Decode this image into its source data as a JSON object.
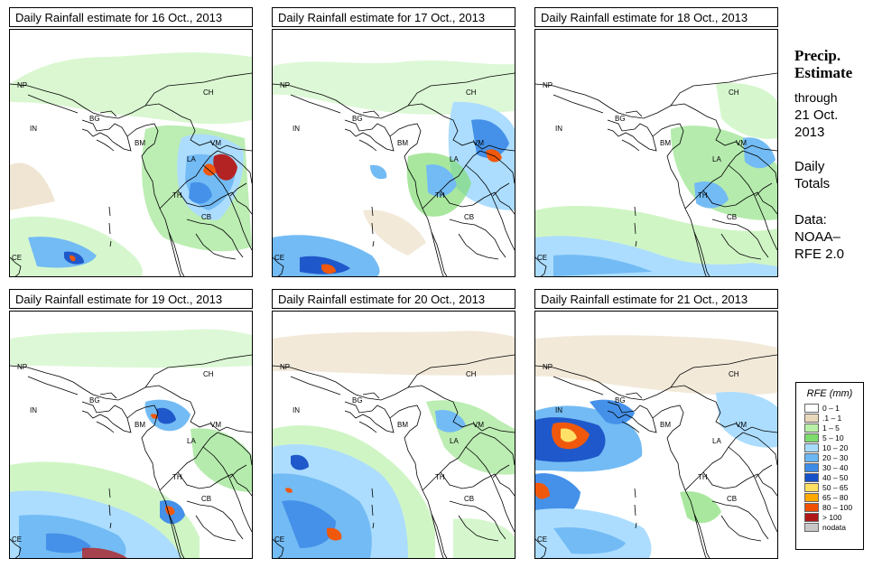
{
  "panels": [
    {
      "title": "Daily Rainfall estimate for  16 Oct., 2013",
      "key": "d16"
    },
    {
      "title": "Daily Rainfall estimate for  17 Oct., 2013",
      "key": "d17"
    },
    {
      "title": "Daily Rainfall estimate for  18 Oct., 2013",
      "key": "d18"
    },
    {
      "title": "Daily Rainfall estimate for  19 Oct., 2013",
      "key": "d19"
    },
    {
      "title": "Daily Rainfall estimate for  20 Oct., 2013",
      "key": "d20"
    },
    {
      "title": "Daily Rainfall estimate for  21 Oct., 2013",
      "key": "d21"
    }
  ],
  "country_labels": {
    "np": "NP",
    "in": "IN",
    "bg": "BG",
    "bm": "BM",
    "ch": "CH",
    "vm": "VM",
    "la": "LA",
    "th": "TH",
    "cb": "CB",
    "ce": "CE"
  },
  "side": {
    "heading1": "Precip.",
    "heading2": "Estimate",
    "through": "through",
    "date1": "21 Oct.",
    "date2": "2013",
    "daily": "Daily",
    "totals": "Totals",
    "data": "Data:",
    "source1": "NOAA–",
    "source2": "RFE 2.0"
  },
  "legend": {
    "title": "RFE (mm)",
    "items": [
      {
        "label": "0 – 1",
        "color": "#ffffff"
      },
      {
        "label": ".1 – 1",
        "color": "#e8d8bc"
      },
      {
        "label": "1 – 5",
        "color": "#b8f0a8"
      },
      {
        "label": "5 – 10",
        "color": "#7ddc6e"
      },
      {
        "label": "10 – 20",
        "color": "#a8dcff"
      },
      {
        "label": "20 – 30",
        "color": "#6cb8f4"
      },
      {
        "label": "30 – 40",
        "color": "#3c8ce8"
      },
      {
        "label": "40 – 50",
        "color": "#1450c8"
      },
      {
        "label": "50 – 65",
        "color": "#ffe060"
      },
      {
        "label": "65 – 80",
        "color": "#ffa800"
      },
      {
        "label": "80 – 100",
        "color": "#f05000"
      },
      {
        "label": "> 100",
        "color": "#b01818"
      },
      {
        "label": "nodata",
        "color": "#c8c8c8"
      }
    ]
  }
}
